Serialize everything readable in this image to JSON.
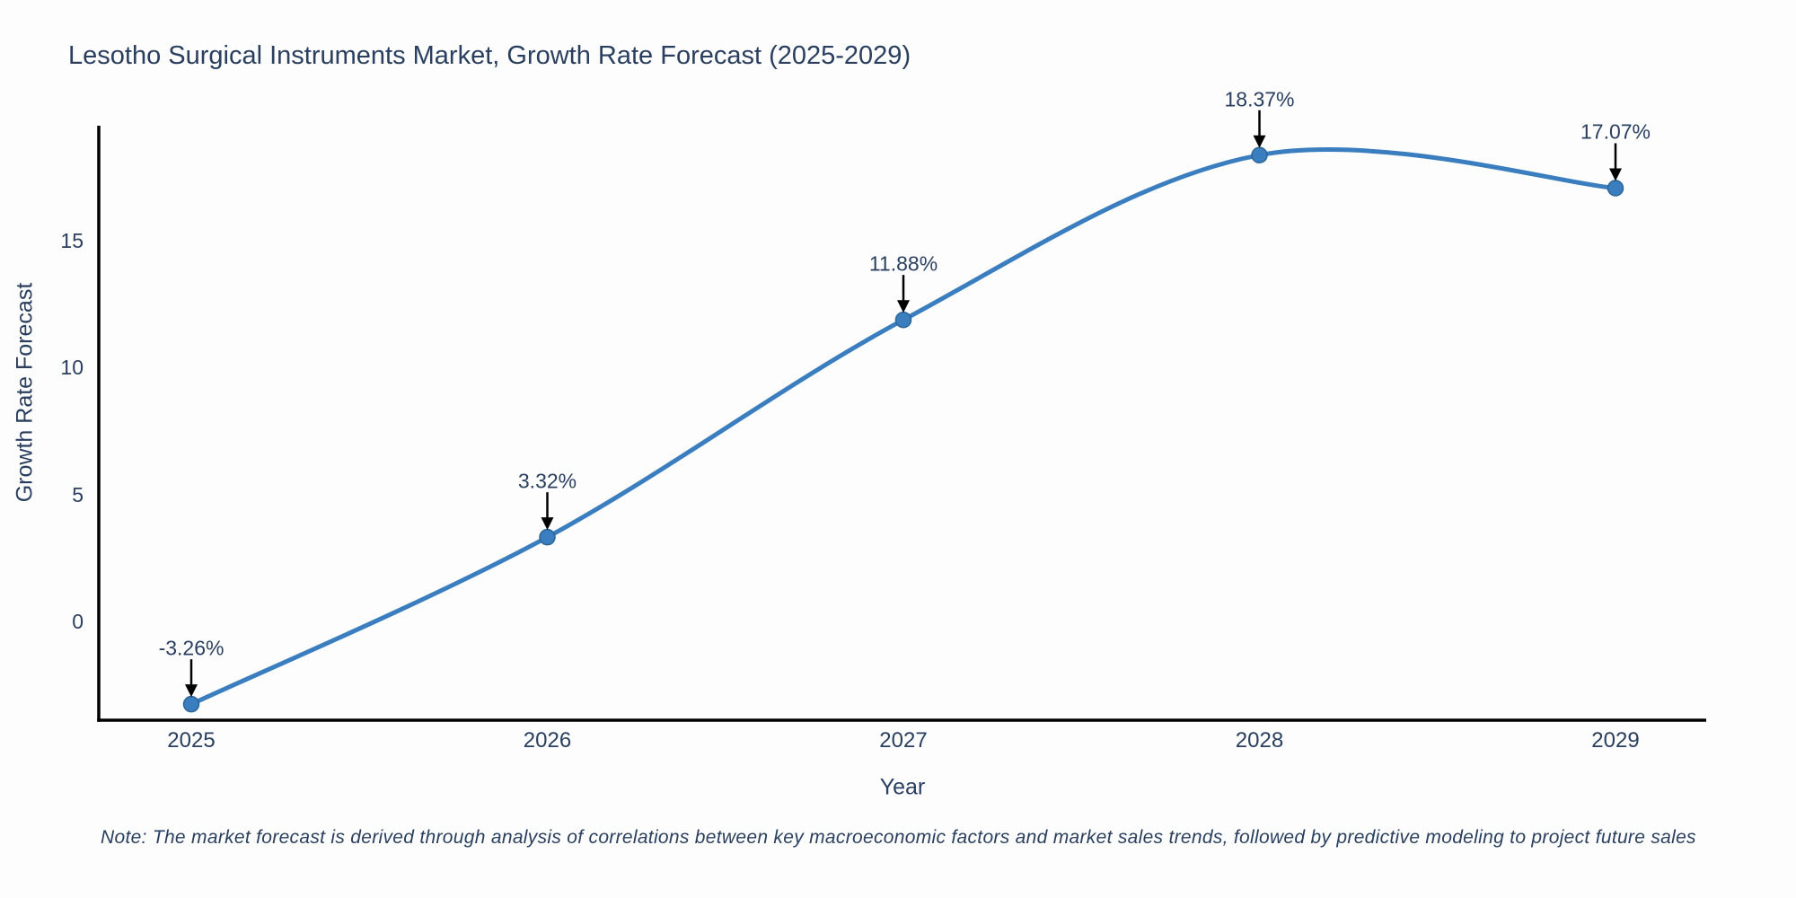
{
  "title": "Lesotho Surgical Instruments Market, Growth Rate Forecast (2025-2029)",
  "note": "Note: The market forecast is derived through analysis of correlations between key macroeconomic factors and market sales trends, followed by predictive modeling to project future sales",
  "colors": {
    "line": "#3a7ebf",
    "marker_fill": "#3a7ebf",
    "marker_edge": "#2c6697",
    "arrow": "#000000",
    "axis": "#000000",
    "text": "#2a3f5f",
    "background": "#fdfdfd"
  },
  "chart_data": {
    "type": "line",
    "title": "Lesotho Surgical Instruments Market, Growth Rate Forecast (2025-2029)",
    "xlabel": "Year",
    "ylabel": "Growth Rate Forecast",
    "categories": [
      "2025",
      "2026",
      "2027",
      "2028",
      "2029"
    ],
    "values": [
      -3.26,
      3.32,
      11.88,
      18.37,
      17.07
    ],
    "point_labels": [
      "-3.26%",
      "3.32%",
      "11.88%",
      "18.37%",
      "17.07%"
    ],
    "yticks": [
      0,
      5,
      10,
      15
    ],
    "ylim": [
      -3.9,
      19.5
    ],
    "grid": false,
    "legend": "none",
    "line_shape": "spline",
    "markers": true,
    "annotation_style": "label-with-down-arrow"
  }
}
